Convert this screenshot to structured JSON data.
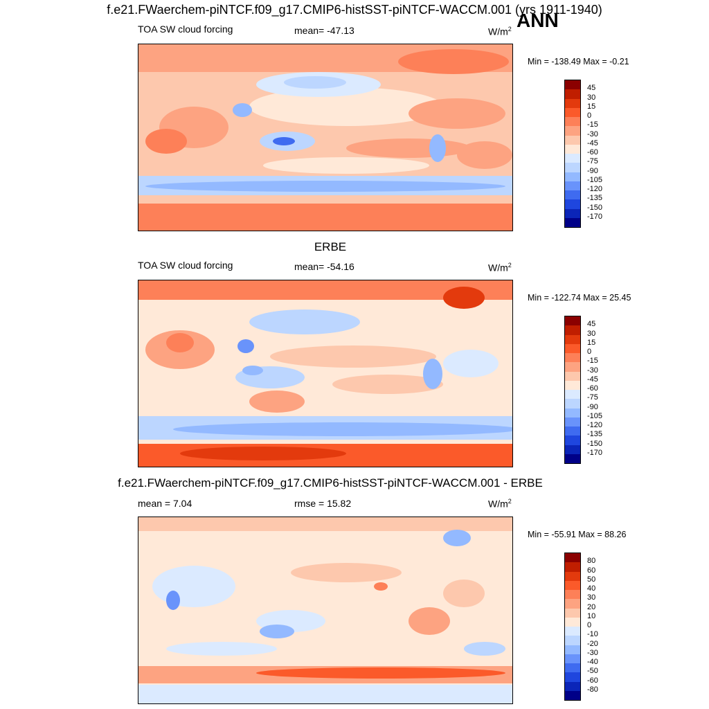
{
  "header": {
    "title": "f.e21.FWaerchem-piNTCF.f09_g17.CMIP6-histSST-piNTCF-WACCM.001 (yrs 1911-1940)",
    "season": "ANN"
  },
  "colors": {
    "abs_scale": [
      "#8b0000",
      "#c01e00",
      "#e33a0d",
      "#fb5a2a",
      "#fd8058",
      "#fda381",
      "#fdc8ad",
      "#ffe9d8",
      "#dbeaff",
      "#bcd6ff",
      "#93b9ff",
      "#6993fb",
      "#3f6bf0",
      "#1f46de",
      "#0b25b8",
      "#000088"
    ],
    "diff_scale": [
      "#8b0000",
      "#c01e00",
      "#e33a0d",
      "#fb5a2a",
      "#fd8058",
      "#fda381",
      "#fdc8ad",
      "#ffe9d8",
      "#dbeaff",
      "#bcd6ff",
      "#93b9ff",
      "#6993fb",
      "#3f6bf0",
      "#1f46de",
      "#0b25b8",
      "#000088"
    ]
  },
  "panels": [
    {
      "id": "model",
      "variable": "TOA SW cloud forcing",
      "stat": "mean= -47.13",
      "units": "W/m",
      "units_sup": "2",
      "minmax": "Min = -138.49 Max =  -0.21",
      "ticks": [
        "45",
        "30",
        "15",
        "0",
        "-15",
        "-30",
        "-45",
        "-60",
        "-75",
        "-90",
        "-105",
        "-120",
        "-135",
        "-150",
        "-170"
      ]
    },
    {
      "id": "obs",
      "title": "ERBE",
      "variable": "TOA SW cloud forcing",
      "stat": "mean= -54.16",
      "units": "W/m",
      "units_sup": "2",
      "minmax": "Min = -122.74 Max =  25.45",
      "ticks": [
        "45",
        "30",
        "15",
        "0",
        "-15",
        "-30",
        "-45",
        "-60",
        "-75",
        "-90",
        "-105",
        "-120",
        "-135",
        "-150",
        "-170"
      ]
    },
    {
      "id": "diff",
      "title": "f.e21.FWaerchem-piNTCF.f09_g17.CMIP6-histSST-piNTCF-WACCM.001 - ERBE",
      "stat_left": "mean =   7.04",
      "stat_mid": "rmse =  15.82",
      "units": "W/m",
      "units_sup": "2",
      "minmax": "Min = -55.91 Max =  88.26",
      "ticks": [
        "80",
        "60",
        "50",
        "40",
        "30",
        "20",
        "10",
        "0",
        "-10",
        "-20",
        "-30",
        "-40",
        "-50",
        "-60",
        "-80"
      ]
    }
  ]
}
